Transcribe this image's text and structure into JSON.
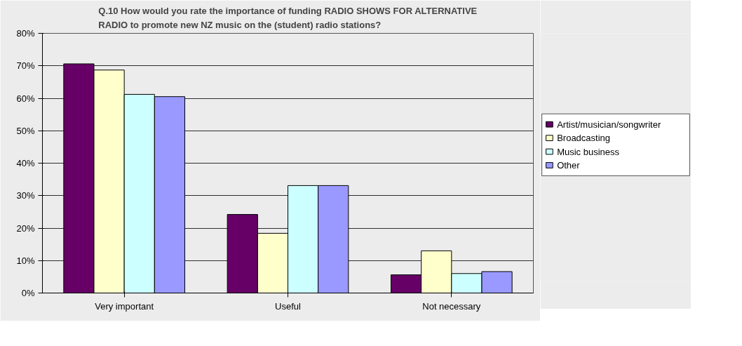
{
  "chart_data": {
    "type": "bar",
    "title": "Q.10 How would you rate the importance of funding RADIO SHOWS FOR ALTERNATIVE\nRADIO to promote new NZ music on the (student) radio stations?",
    "categories": [
      "Very important",
      "Useful",
      "Not necessary"
    ],
    "series": [
      {
        "name": "Artist/musician/songwriter",
        "color": "#660066",
        "values": [
          70.6,
          24.2,
          5.6
        ]
      },
      {
        "name": "Broadcasting",
        "color": "#ffffcc",
        "values": [
          68.7,
          18.4,
          13.0
        ]
      },
      {
        "name": "Music business",
        "color": "#ccffff",
        "values": [
          61.2,
          33.1,
          6.0
        ]
      },
      {
        "name": "Other",
        "color": "#9999ff",
        "values": [
          60.5,
          33.1,
          6.6
        ]
      }
    ],
    "ylim": [
      0,
      80
    ],
    "yticks": [
      {
        "value": 0,
        "label": "0%"
      },
      {
        "value": 10,
        "label": "10%"
      },
      {
        "value": 20,
        "label": "20%"
      },
      {
        "value": 30,
        "label": "30%"
      },
      {
        "value": 40,
        "label": "40%"
      },
      {
        "value": 50,
        "label": "50%"
      },
      {
        "value": 60,
        "label": "60%"
      },
      {
        "value": 70,
        "label": "70%"
      },
      {
        "value": 80,
        "label": "80%"
      }
    ],
    "grid": "y",
    "legend": "right"
  }
}
